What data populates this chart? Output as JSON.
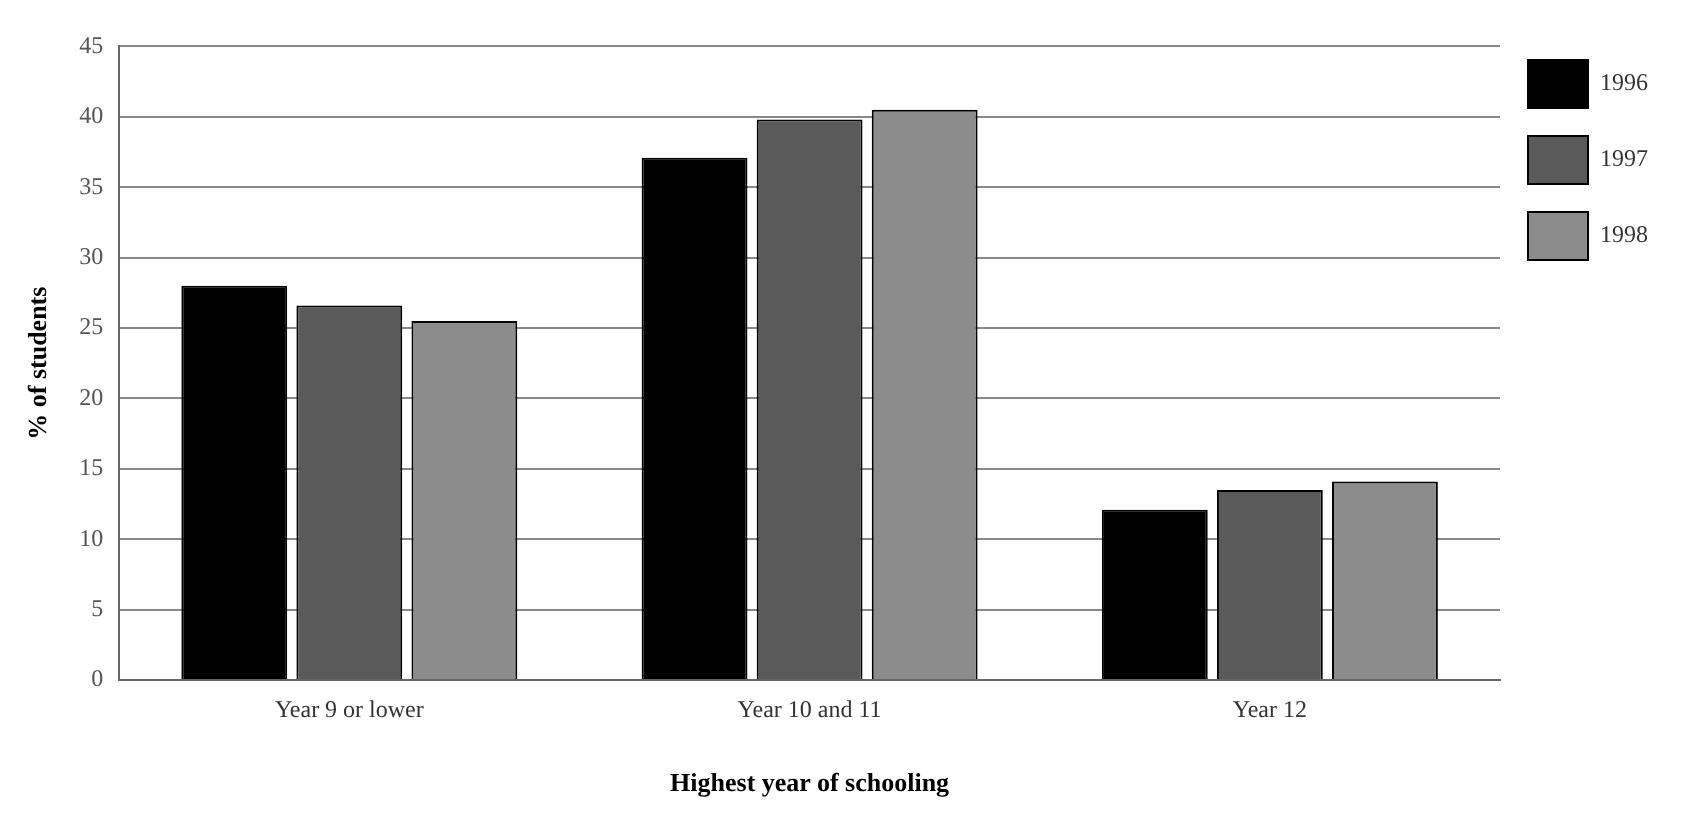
{
  "chart_data": {
    "type": "bar",
    "xlabel": "Highest year of schooling",
    "ylabel": "% of students",
    "categories": [
      "Year 9 or lower",
      "Year 10 and 11",
      "Year 12"
    ],
    "series": [
      {
        "name": "1996",
        "color": "#000000",
        "values": [
          28,
          37.1,
          12.1
        ]
      },
      {
        "name": "1997",
        "color": "#5a5a5a",
        "values": [
          26.6,
          39.8,
          13.5
        ]
      },
      {
        "name": "1998",
        "color": "#8c8c8c",
        "values": [
          25.5,
          40.5,
          14.1
        ]
      }
    ],
    "ylim": [
      0,
      45
    ],
    "yticks": [
      0,
      5,
      10,
      15,
      20,
      25,
      30,
      35,
      40,
      45
    ],
    "grid": "y",
    "legend": "top right"
  }
}
